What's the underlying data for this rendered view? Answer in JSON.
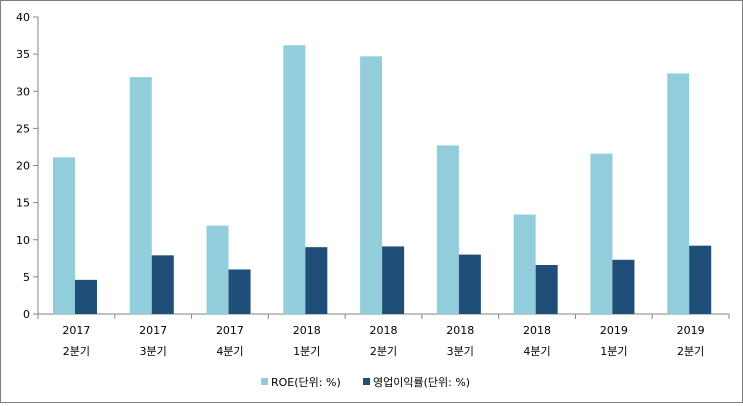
{
  "chart_data": {
    "type": "bar",
    "categories": [
      {
        "year": "2017",
        "quarter": "2분기"
      },
      {
        "year": "2017",
        "quarter": "3분기"
      },
      {
        "year": "2017",
        "quarter": "4분기"
      },
      {
        "year": "2018",
        "quarter": "1분기"
      },
      {
        "year": "2018",
        "quarter": "2분기"
      },
      {
        "year": "2018",
        "quarter": "3분기"
      },
      {
        "year": "2018",
        "quarter": "4분기"
      },
      {
        "year": "2019",
        "quarter": "1분기"
      },
      {
        "year": "2019",
        "quarter": "2분기"
      }
    ],
    "series": [
      {
        "name": "ROE(단위: %)",
        "color": "#92cddc",
        "values": [
          21.1,
          31.9,
          11.9,
          36.2,
          34.7,
          22.7,
          13.4,
          21.6,
          32.4
        ]
      },
      {
        "name": "영업이익률(단위: %)",
        "color": "#1f4e79",
        "values": [
          4.6,
          7.9,
          6.0,
          9.0,
          9.1,
          8.0,
          6.6,
          7.3,
          9.2
        ]
      }
    ],
    "ylim": [
      0,
      40
    ],
    "yticks": [
      0,
      5,
      10,
      15,
      20,
      25,
      30,
      35,
      40
    ],
    "grid": false,
    "legend": "bottom"
  }
}
